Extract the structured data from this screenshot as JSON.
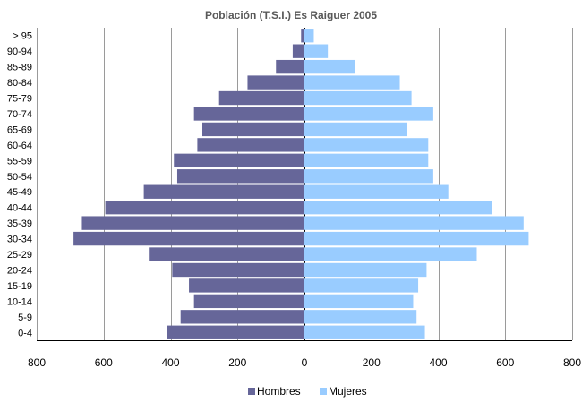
{
  "chart_data": {
    "type": "bar",
    "orientation": "horizontal",
    "title": "Población (T.S.I.) Es Raiguer 2005",
    "categories": [
      "0-4",
      "5-9",
      "10-14",
      "15-19",
      "20-24",
      "25-29",
      "30-34",
      "35-39",
      "40-44",
      "45-49",
      "50-54",
      "55-59",
      "60-64",
      "65-69",
      "70-74",
      "75-79",
      "80-84",
      "85-89",
      "90-94",
      "> 95"
    ],
    "series": [
      {
        "name": "Hombres",
        "side": "left",
        "color": "#666699",
        "values": [
          410,
          370,
          330,
          345,
          395,
          465,
          690,
          665,
          595,
          480,
          380,
          390,
          320,
          305,
          330,
          255,
          170,
          85,
          35,
          10
        ]
      },
      {
        "name": "Mujeres",
        "side": "right",
        "color": "#99ccff",
        "values": [
          360,
          335,
          325,
          340,
          365,
          515,
          670,
          655,
          560,
          430,
          385,
          370,
          370,
          305,
          385,
          320,
          285,
          150,
          70,
          28
        ]
      }
    ],
    "x_ticks": [
      "800",
      "600",
      "400",
      "200",
      "0",
      "200",
      "400",
      "600",
      "800"
    ],
    "xlim": [
      -800,
      800
    ],
    "grid": true,
    "legend_position": "bottom"
  }
}
